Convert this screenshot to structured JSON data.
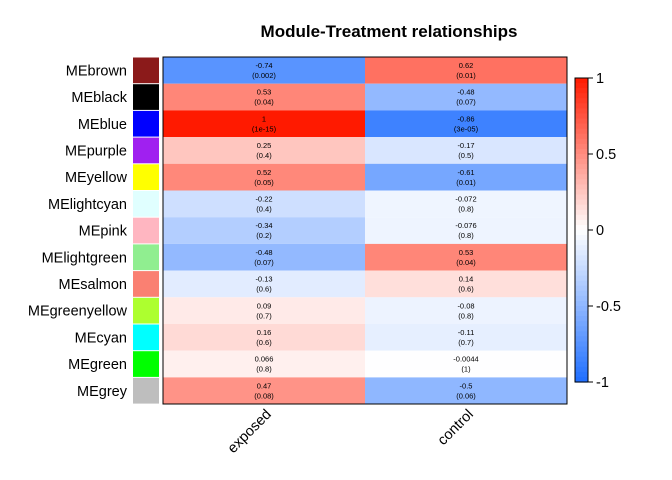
{
  "chart_data": {
    "type": "heatmap",
    "title": "Module-Treatment relationships",
    "columns": [
      "exposed",
      "control"
    ],
    "rows": [
      {
        "label": "MEbrown",
        "module_color": "#8B1A1A",
        "values": [
          -0.74,
          0.62
        ],
        "pvalues": [
          "(0.002)",
          "(0.01)"
        ]
      },
      {
        "label": "MEblack",
        "module_color": "#000000",
        "values": [
          0.53,
          -0.48
        ],
        "pvalues": [
          "(0.04)",
          "(0.07)"
        ]
      },
      {
        "label": "MEblue",
        "module_color": "#0000FF",
        "values": [
          1,
          -0.86
        ],
        "pvalues": [
          "(1e-15)",
          "(3e-05)"
        ]
      },
      {
        "label": "MEpurple",
        "module_color": "#A020F0",
        "values": [
          0.25,
          -0.17
        ],
        "pvalues": [
          "(0.4)",
          "(0.5)"
        ]
      },
      {
        "label": "MEyellow",
        "module_color": "#FFFF00",
        "values": [
          0.52,
          -0.61
        ],
        "pvalues": [
          "(0.05)",
          "(0.01)"
        ]
      },
      {
        "label": "MElightcyan",
        "module_color": "#E0FFFF",
        "values": [
          -0.22,
          -0.072
        ],
        "pvalues": [
          "(0.4)",
          "(0.8)"
        ]
      },
      {
        "label": "MEpink",
        "module_color": "#FFB6C1",
        "values": [
          -0.34,
          -0.076
        ],
        "pvalues": [
          "(0.2)",
          "(0.8)"
        ]
      },
      {
        "label": "MElightgreen",
        "module_color": "#90EE90",
        "values": [
          -0.48,
          0.53
        ],
        "pvalues": [
          "(0.07)",
          "(0.04)"
        ]
      },
      {
        "label": "MEsalmon",
        "module_color": "#FA8072",
        "values": [
          -0.13,
          0.14
        ],
        "pvalues": [
          "(0.6)",
          "(0.6)"
        ]
      },
      {
        "label": "MEgreenyellow",
        "module_color": "#ADFF2F",
        "values": [
          0.09,
          -0.08
        ],
        "pvalues": [
          "(0.7)",
          "(0.8)"
        ]
      },
      {
        "label": "MEcyan",
        "module_color": "#00FFFF",
        "values": [
          0.16,
          -0.11
        ],
        "pvalues": [
          "(0.6)",
          "(0.7)"
        ]
      },
      {
        "label": "MEgreen",
        "module_color": "#00FF00",
        "values": [
          0.066,
          -0.0044
        ],
        "pvalues": [
          "(0.8)",
          "(1)"
        ]
      },
      {
        "label": "MEgrey",
        "module_color": "#BEBEBE",
        "values": [
          0.47,
          -0.5
        ],
        "pvalues": [
          "(0.08)",
          "(0.06)"
        ]
      }
    ],
    "colorbar": {
      "range": [
        -1,
        1
      ],
      "ticks": [
        1,
        0.5,
        0,
        -0.5,
        -1
      ],
      "tick_labels": [
        "1",
        "0.5",
        "0",
        "-0.5",
        "-1"
      ],
      "color_negative": "#1E6EFF",
      "color_zero": "#FFFFFF",
      "color_positive": "#FF1A00"
    }
  }
}
